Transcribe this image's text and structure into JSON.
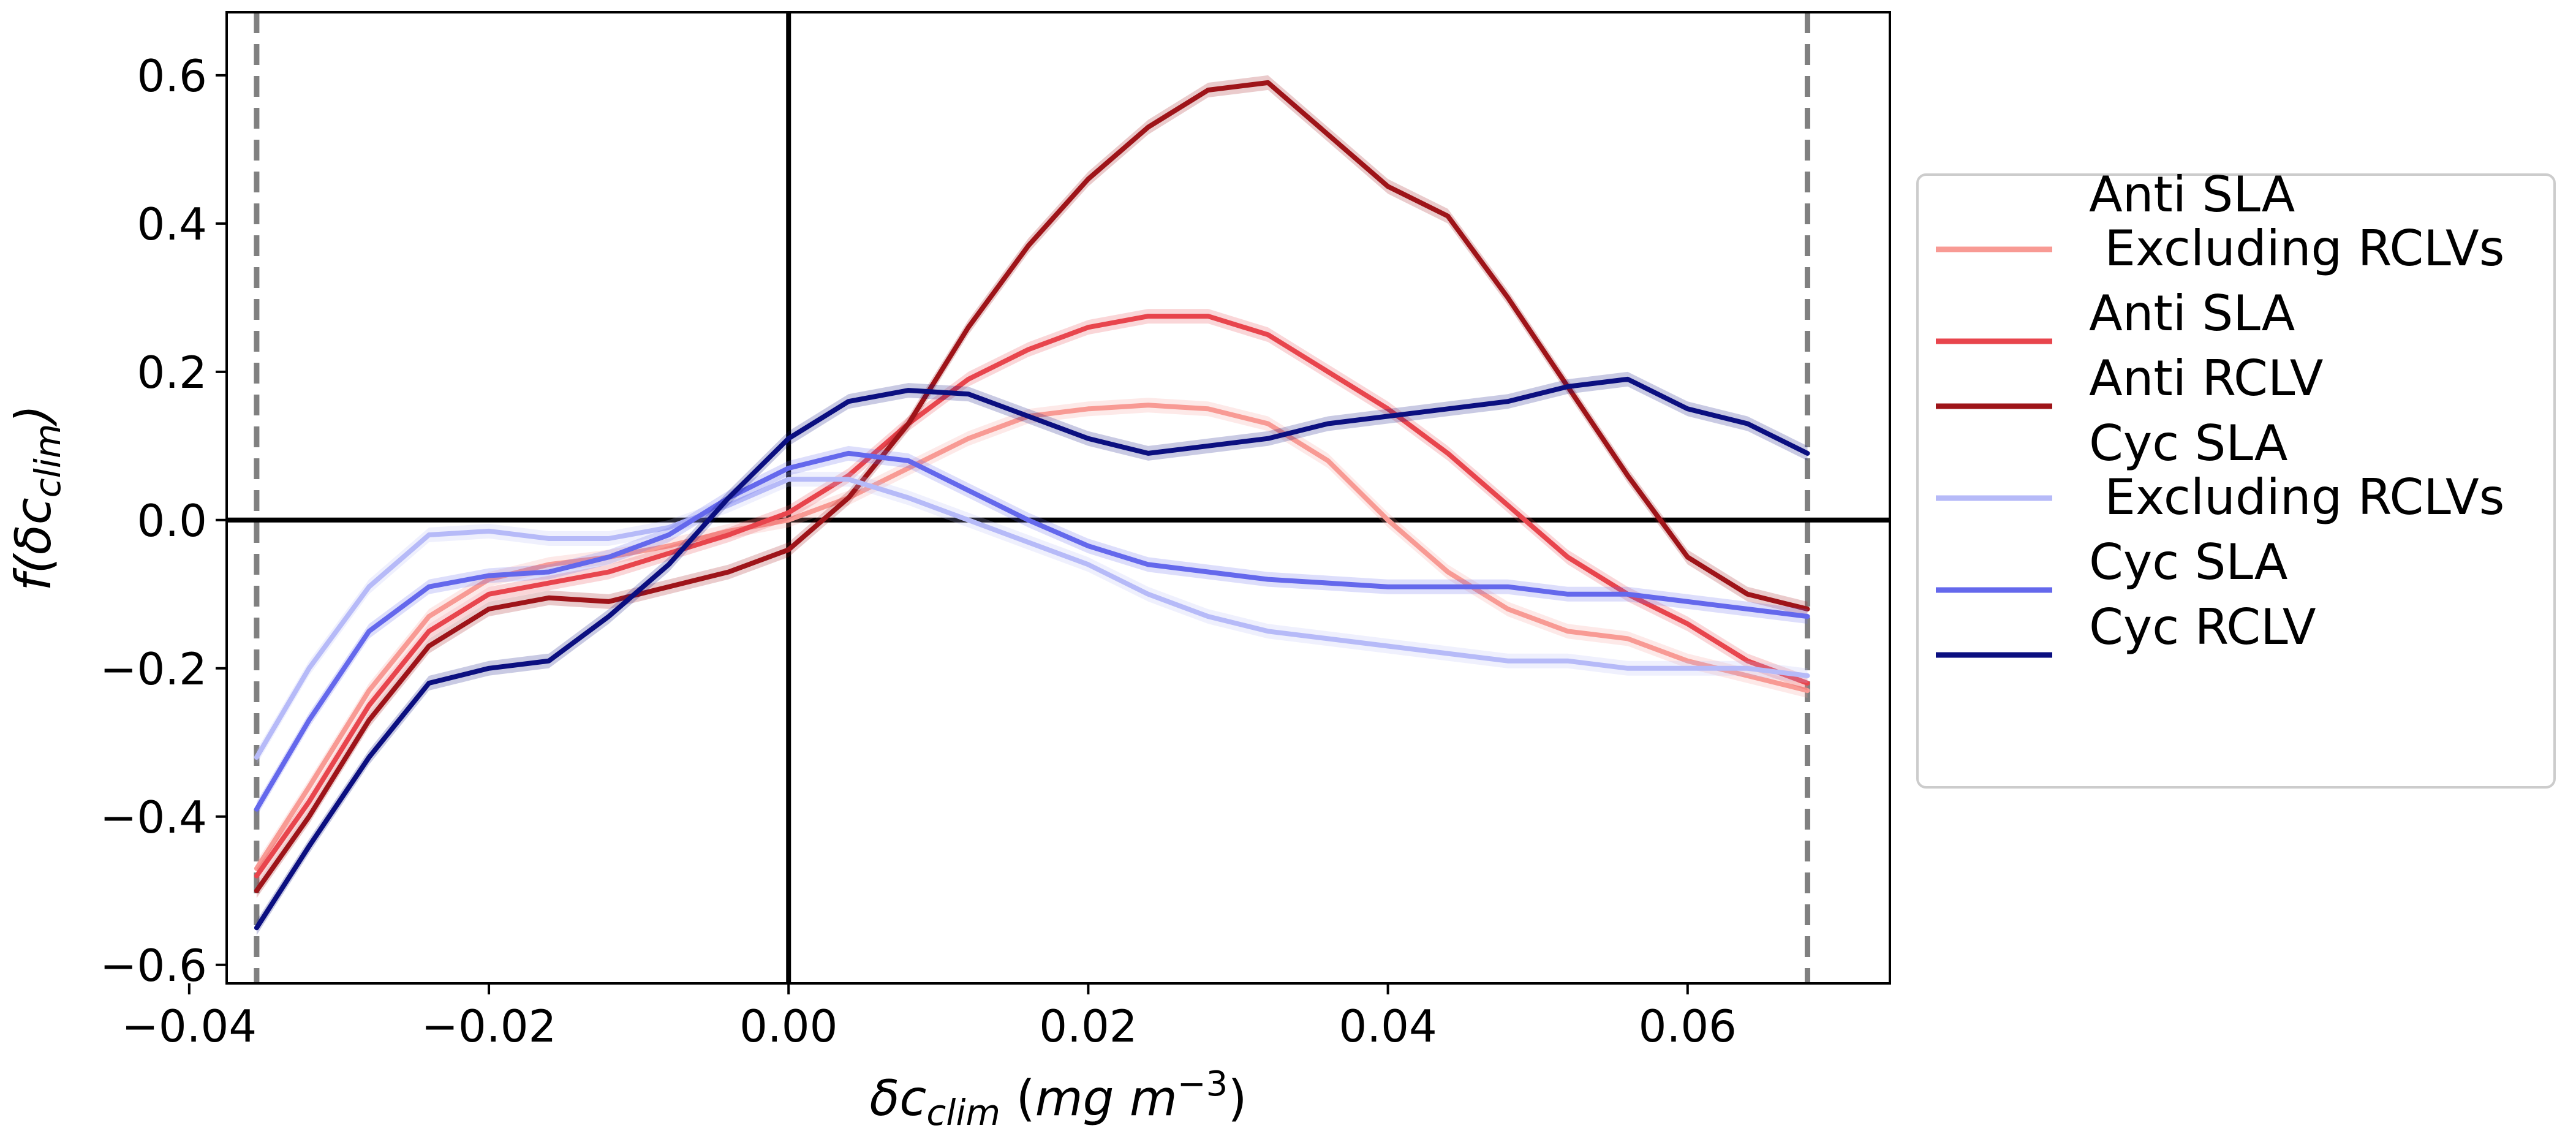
{
  "chart_data": {
    "type": "line",
    "title": "",
    "xlabel": {
      "main": "δc",
      "sub": "clim",
      "units_open": " (",
      "units": "mg  m",
      "units_sup": "−3",
      "units_close": ")"
    },
    "ylabel": {
      "prefix": "f(δc",
      "sub": "clim",
      "suffix": ")"
    },
    "xlim": [
      -0.0375,
      0.0735
    ],
    "ylim": [
      -0.625,
      0.685
    ],
    "xticks": [
      {
        "value": -0.04,
        "label": "−0.04"
      },
      {
        "value": -0.02,
        "label": "−0.02"
      },
      {
        "value": 0.0,
        "label": "0.00"
      },
      {
        "value": 0.02,
        "label": "0.02"
      },
      {
        "value": 0.04,
        "label": "0.04"
      },
      {
        "value": 0.06,
        "label": "0.06"
      }
    ],
    "yticks": [
      {
        "value": 0.6,
        "label": "0.6"
      },
      {
        "value": 0.4,
        "label": "0.4"
      },
      {
        "value": 0.2,
        "label": "0.2"
      },
      {
        "value": 0.0,
        "label": "0.0"
      },
      {
        "value": -0.2,
        "label": "−0.2"
      },
      {
        "value": -0.4,
        "label": "−0.4"
      },
      {
        "value": -0.6,
        "label": "−0.6"
      }
    ],
    "reference_lines": {
      "vertical_dashed": [
        -0.0355,
        0.068
      ],
      "vertical_solid": [
        0.0
      ],
      "horizontal_solid": [
        0.0
      ]
    },
    "grid": false,
    "legend": {
      "placement": "right-outside"
    },
    "series": [
      {
        "name": "Anti SLA\n Excluding RCLVs",
        "color": "#f89a94",
        "x": [
          -0.0355,
          -0.032,
          -0.028,
          -0.024,
          -0.02,
          -0.016,
          -0.012,
          -0.008,
          -0.004,
          0.0,
          0.004,
          0.008,
          0.012,
          0.016,
          0.02,
          0.024,
          0.028,
          0.032,
          0.036,
          0.04,
          0.044,
          0.048,
          0.052,
          0.056,
          0.06,
          0.064,
          0.068
        ],
        "y": [
          -0.47,
          -0.36,
          -0.23,
          -0.13,
          -0.08,
          -0.06,
          -0.05,
          -0.035,
          -0.015,
          0.0,
          0.03,
          0.07,
          0.11,
          0.14,
          0.15,
          0.155,
          0.15,
          0.13,
          0.08,
          0.0,
          -0.07,
          -0.12,
          -0.15,
          -0.16,
          -0.19,
          -0.21,
          -0.23
        ]
      },
      {
        "name": "Anti SLA",
        "color": "#e8454d",
        "x": [
          -0.0355,
          -0.032,
          -0.028,
          -0.024,
          -0.02,
          -0.016,
          -0.012,
          -0.008,
          -0.004,
          0.0,
          0.004,
          0.008,
          0.012,
          0.016,
          0.02,
          0.024,
          0.028,
          0.032,
          0.036,
          0.04,
          0.044,
          0.048,
          0.052,
          0.056,
          0.06,
          0.064,
          0.068
        ],
        "y": [
          -0.48,
          -0.38,
          -0.25,
          -0.15,
          -0.1,
          -0.085,
          -0.07,
          -0.045,
          -0.02,
          0.01,
          0.06,
          0.13,
          0.19,
          0.23,
          0.26,
          0.275,
          0.275,
          0.25,
          0.2,
          0.15,
          0.09,
          0.02,
          -0.05,
          -0.1,
          -0.14,
          -0.19,
          -0.22
        ]
      },
      {
        "name": "Anti RCLV",
        "color": "#9e1419",
        "x": [
          -0.0355,
          -0.032,
          -0.028,
          -0.024,
          -0.02,
          -0.016,
          -0.012,
          -0.008,
          -0.004,
          0.0,
          0.004,
          0.008,
          0.012,
          0.016,
          0.02,
          0.024,
          0.028,
          0.032,
          0.036,
          0.04,
          0.044,
          0.048,
          0.052,
          0.056,
          0.06,
          0.064,
          0.068
        ],
        "y": [
          -0.5,
          -0.4,
          -0.27,
          -0.17,
          -0.12,
          -0.105,
          -0.11,
          -0.09,
          -0.07,
          -0.04,
          0.03,
          0.13,
          0.26,
          0.37,
          0.46,
          0.53,
          0.58,
          0.59,
          0.52,
          0.45,
          0.41,
          0.3,
          0.18,
          0.06,
          -0.05,
          -0.1,
          -0.12
        ]
      },
      {
        "name": "Cyc SLA\n Excluding RCLVs",
        "color": "#b6baf8",
        "x": [
          -0.0355,
          -0.032,
          -0.028,
          -0.024,
          -0.02,
          -0.016,
          -0.012,
          -0.008,
          -0.004,
          0.0,
          0.004,
          0.008,
          0.012,
          0.016,
          0.02,
          0.024,
          0.028,
          0.032,
          0.036,
          0.04,
          0.044,
          0.048,
          0.052,
          0.056,
          0.06,
          0.064,
          0.068
        ],
        "y": [
          -0.32,
          -0.2,
          -0.09,
          -0.02,
          -0.015,
          -0.025,
          -0.025,
          -0.01,
          0.02,
          0.055,
          0.055,
          0.03,
          0.0,
          -0.03,
          -0.06,
          -0.1,
          -0.13,
          -0.15,
          -0.16,
          -0.17,
          -0.18,
          -0.19,
          -0.19,
          -0.2,
          -0.2,
          -0.2,
          -0.21
        ]
      },
      {
        "name": "Cyc SLA",
        "color": "#6468ec",
        "x": [
          -0.0355,
          -0.032,
          -0.028,
          -0.024,
          -0.02,
          -0.016,
          -0.012,
          -0.008,
          -0.004,
          0.0,
          0.004,
          0.008,
          0.012,
          0.016,
          0.02,
          0.024,
          0.028,
          0.032,
          0.036,
          0.04,
          0.044,
          0.048,
          0.052,
          0.056,
          0.06,
          0.064,
          0.068
        ],
        "y": [
          -0.39,
          -0.27,
          -0.15,
          -0.09,
          -0.075,
          -0.07,
          -0.05,
          -0.02,
          0.03,
          0.07,
          0.09,
          0.08,
          0.04,
          0.0,
          -0.035,
          -0.06,
          -0.07,
          -0.08,
          -0.085,
          -0.09,
          -0.09,
          -0.09,
          -0.1,
          -0.1,
          -0.11,
          -0.12,
          -0.13
        ]
      },
      {
        "name": "Cyc RCLV",
        "color": "#0b0f80",
        "x": [
          -0.0355,
          -0.032,
          -0.028,
          -0.024,
          -0.02,
          -0.016,
          -0.012,
          -0.008,
          -0.004,
          0.0,
          0.004,
          0.008,
          0.012,
          0.016,
          0.02,
          0.024,
          0.028,
          0.032,
          0.036,
          0.04,
          0.044,
          0.048,
          0.052,
          0.056,
          0.06,
          0.064,
          0.068
        ],
        "y": [
          -0.55,
          -0.44,
          -0.32,
          -0.22,
          -0.2,
          -0.19,
          -0.13,
          -0.06,
          0.03,
          0.11,
          0.16,
          0.175,
          0.17,
          0.14,
          0.11,
          0.09,
          0.1,
          0.11,
          0.13,
          0.14,
          0.15,
          0.16,
          0.18,
          0.19,
          0.15,
          0.13,
          0.09
        ]
      }
    ]
  }
}
